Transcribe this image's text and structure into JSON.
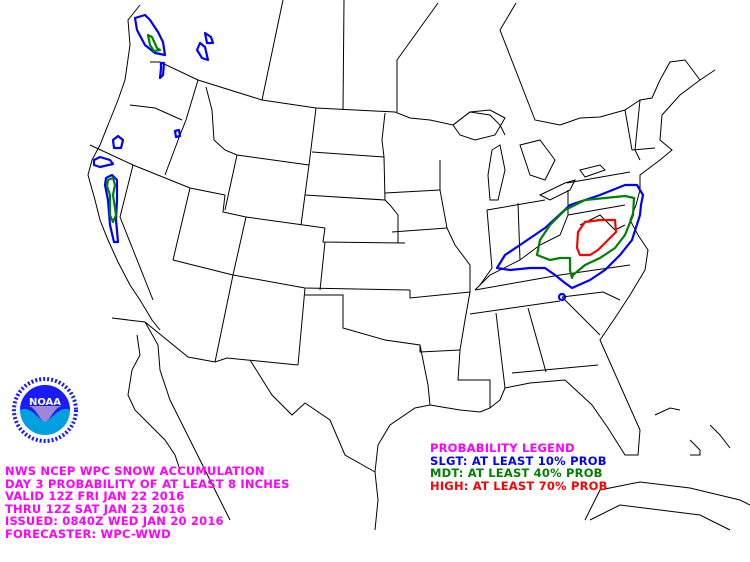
{
  "header": {
    "lines": [
      "NWS NCEP WPC SNOW ACCUMULATION",
      "DAY 3 PROBABILITY OF AT LEAST 8 INCHES",
      "VALID 12Z FRI JAN 22 2016",
      "THRU 12Z SAT JAN 23 2016",
      "ISSUED: 0840Z WED JAN 20 2016",
      "FORECASTER: WPC-WWD"
    ]
  },
  "legend": {
    "title": "PROBABILITY LEGEND",
    "items": [
      {
        "label": "SLGT: AT LEAST 10% PROB",
        "color": "#0000ff"
      },
      {
        "label": "MDT: AT LEAST 40% PROB",
        "color": "#008000"
      },
      {
        "label": "HIGH: AT LEAST 70% PROB",
        "color": "#ff0000"
      }
    ],
    "title_color": "#ff00ff"
  },
  "logo": {
    "text": "NOAA",
    "ring_text": "NATIONAL OCEANIC AND ATMOSPHERIC ADMINISTRATION U.S. DEPARTMENT OF COMMERCE"
  }
}
